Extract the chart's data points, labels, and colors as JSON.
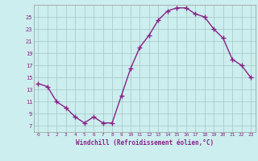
{
  "x": [
    0,
    1,
    2,
    3,
    4,
    5,
    6,
    7,
    8,
    9,
    10,
    11,
    12,
    13,
    14,
    15,
    16,
    17,
    18,
    19,
    20,
    21,
    22,
    23
  ],
  "y": [
    14.0,
    13.5,
    11.0,
    10.0,
    8.5,
    7.5,
    8.5,
    7.5,
    7.5,
    12.0,
    16.5,
    20.0,
    22.0,
    24.5,
    26.0,
    26.5,
    26.5,
    25.5,
    25.0,
    23.0,
    21.5,
    18.0,
    17.0,
    15.0
  ],
  "line_color": "#882288",
  "marker": "+",
  "bg_color": "#cceeee",
  "grid_color": "#aacccc",
  "xlabel": "Windchill (Refroidissement éolien,°C)",
  "xlabel_color": "#882288",
  "tick_color": "#882288",
  "ylim": [
    6,
    27
  ],
  "yticks": [
    7,
    9,
    11,
    13,
    15,
    17,
    19,
    21,
    23,
    25
  ],
  "xlim": [
    -0.5,
    23.5
  ]
}
